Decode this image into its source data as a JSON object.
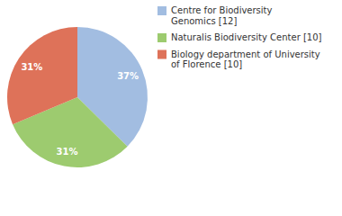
{
  "chart_data": {
    "type": "pie",
    "categories": [
      "Centre for Biodiversity Genomics [12]",
      "Naturalis Biodiversity Center [10]",
      "Biology department of University of Florence [10]"
    ],
    "values": [
      37,
      31,
      31
    ],
    "value_labels": [
      "37%",
      "31%",
      "31%"
    ],
    "colors": [
      "#a2bde1",
      "#9dcb6f",
      "#de7259"
    ],
    "data_labels": true,
    "legend": "right"
  }
}
